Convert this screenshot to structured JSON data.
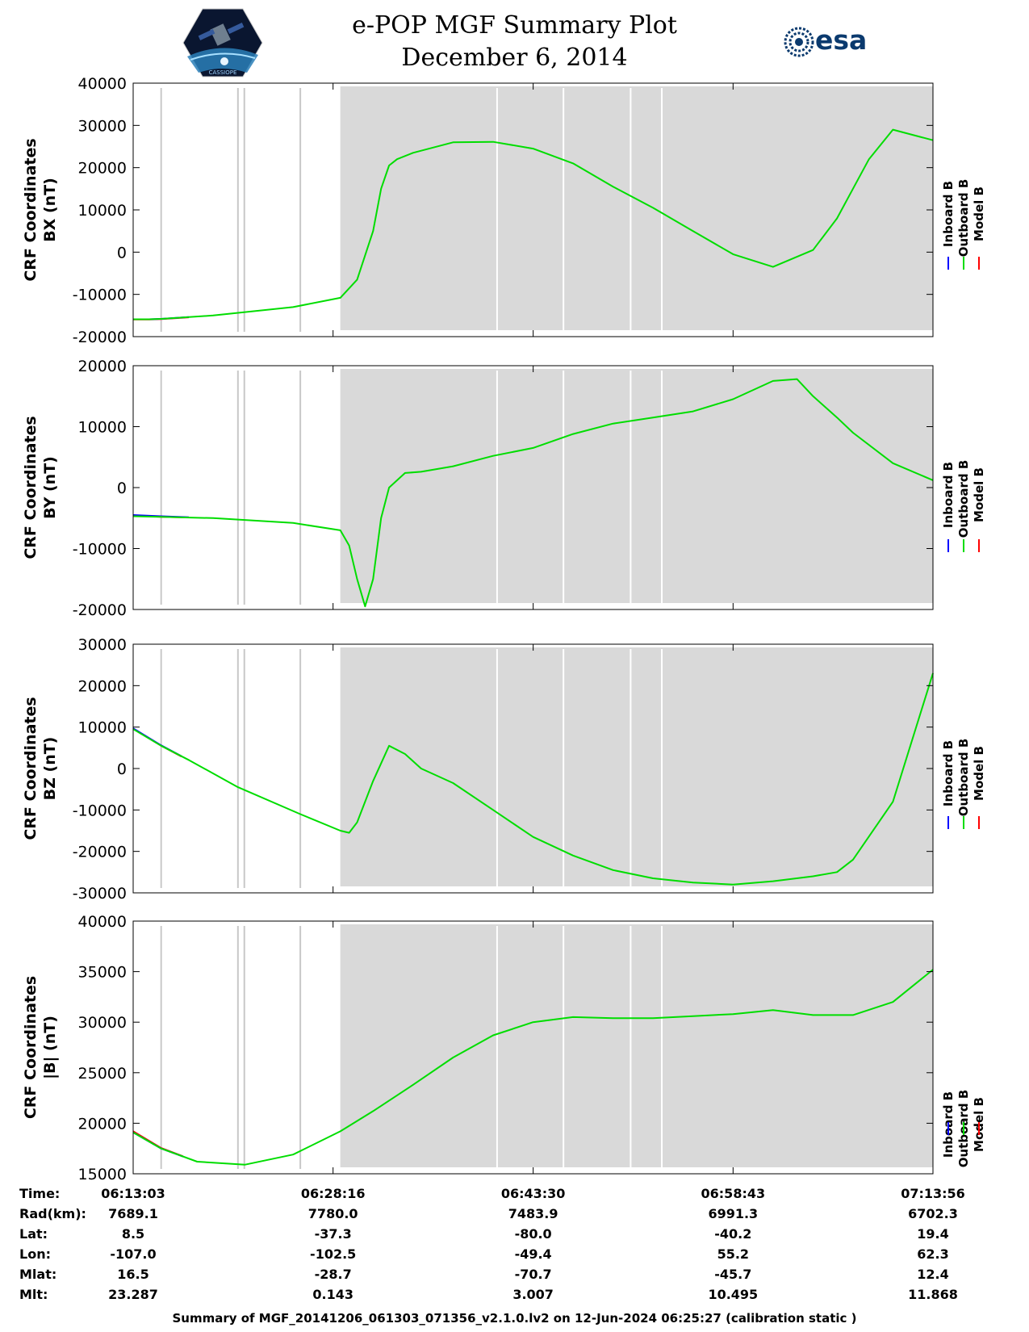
{
  "header": {
    "title": "e-POP MGF Summary Plot",
    "date": "December 6, 2014",
    "left_logo": {
      "name": "cassiope-mission-logo",
      "text": "CASSIOPE"
    },
    "right_logo": {
      "name": "esa-logo",
      "text": "esa"
    }
  },
  "colors": {
    "inboard": "#0000ff",
    "outboard": "#00dd00",
    "model": "#ff0000",
    "shade": "#d9d9d9",
    "marker": "#c8c8c8"
  },
  "legend": [
    {
      "label": "Inboard B",
      "color": "#0000ff"
    },
    {
      "label": "Outboard B",
      "color": "#00dd00"
    },
    {
      "label": "Model B",
      "color": "#ff0000"
    }
  ],
  "time_axis": {
    "start_sec": 0,
    "end_sec": 3653,
    "tick_secs": [
      0,
      913,
      1827,
      2740,
      3653
    ]
  },
  "shaded_region": [
    0.259,
    1.0
  ],
  "marker_lines": [
    0.035,
    0.131,
    0.139,
    0.209,
    0.455,
    0.538,
    0.622,
    0.661
  ],
  "chart_data": [
    {
      "type": "line",
      "ylabel": "CRF Coordinates",
      "ylabel2": "BX (nT)",
      "ylim": [
        -20000,
        40000
      ],
      "yticks": [
        "40000",
        "30000",
        "20000",
        "10000",
        "0",
        "-10000",
        "-20000"
      ],
      "x": [
        0.0,
        0.02,
        0.035,
        0.1,
        0.2,
        0.259,
        0.28,
        0.3,
        0.31,
        0.32,
        0.33,
        0.35,
        0.4,
        0.45,
        0.5,
        0.55,
        0.6,
        0.65,
        0.7,
        0.75,
        0.8,
        0.85,
        0.88,
        0.9,
        0.92,
        0.95,
        1.0
      ],
      "series": [
        {
          "name": "Outboard B",
          "values": [
            -15900,
            -15900,
            -15800,
            -15000,
            -13000,
            -10800,
            -6500,
            5000,
            15000,
            20500,
            22000,
            23500,
            26000,
            26100,
            24500,
            21000,
            15500,
            10500,
            5000,
            -500,
            -3500,
            500,
            8000,
            15000,
            22000,
            29000,
            26500
          ]
        },
        {
          "name": "Inboard B",
          "values": [
            -15900,
            -15900,
            -15800,
            -15000,
            -13000,
            -10800,
            -6500,
            5000,
            15000,
            20500,
            22000,
            23500,
            26000,
            26100,
            24500,
            21000,
            15500,
            10500,
            5000,
            -500,
            -3500,
            500,
            8000,
            15000,
            22000,
            29000,
            26500
          ]
        },
        {
          "name": "Model B",
          "values": [
            -15950,
            -15950,
            -15850,
            -15050,
            -13050,
            -10800,
            -6500,
            5000,
            15000,
            20500,
            22000,
            23500,
            26000,
            26100,
            24500,
            21000,
            15500,
            10500,
            5000,
            -500,
            -3500,
            500,
            8000,
            15000,
            22000,
            29000,
            26500
          ]
        }
      ]
    },
    {
      "type": "line",
      "ylabel": "CRF Coordinates",
      "ylabel2": "BY (nT)",
      "ylim": [
        -20000,
        20000
      ],
      "yticks": [
        "20000",
        "10000",
        "0",
        "-10000",
        "-20000"
      ],
      "x": [
        0.0,
        0.035,
        0.1,
        0.2,
        0.259,
        0.27,
        0.28,
        0.29,
        0.3,
        0.31,
        0.32,
        0.34,
        0.36,
        0.4,
        0.45,
        0.5,
        0.55,
        0.6,
        0.65,
        0.7,
        0.75,
        0.8,
        0.83,
        0.85,
        0.88,
        0.9,
        0.95,
        1.0
      ],
      "series": [
        {
          "name": "Outboard B",
          "values": [
            -4700,
            -4800,
            -5000,
            -5800,
            -7000,
            -9500,
            -15000,
            -19500,
            -15000,
            -5000,
            0,
            2400,
            2600,
            3500,
            5200,
            6500,
            8800,
            10500,
            11500,
            12500,
            14500,
            17500,
            17800,
            15000,
            11500,
            9000,
            4000,
            1200
          ]
        },
        {
          "name": "Inboard B",
          "values": [
            -4500,
            -4700,
            -5000,
            -5800,
            -7000,
            -9500,
            -15000,
            -19500,
            -15000,
            -5000,
            0,
            2400,
            2600,
            3500,
            5200,
            6500,
            8800,
            10500,
            11500,
            12500,
            14500,
            17500,
            17800,
            15000,
            11500,
            9000,
            4000,
            1200
          ]
        },
        {
          "name": "Model B",
          "values": [
            -4600,
            -4800,
            -5000,
            -5800,
            -7000,
            -9500,
            -15000,
            -19500,
            -15000,
            -5000,
            0,
            2500,
            2700,
            3600,
            5300,
            6600,
            8900,
            10600,
            11600,
            12600,
            14600,
            17600,
            17900,
            15100,
            11600,
            9100,
            4100,
            1300
          ]
        }
      ]
    },
    {
      "type": "line",
      "ylabel": "CRF Coordinates",
      "ylabel2": "BZ (nT)",
      "ylim": [
        -30000,
        30000
      ],
      "yticks": [
        "30000",
        "20000",
        "10000",
        "0",
        "-10000",
        "-20000",
        "-30000"
      ],
      "x": [
        0.0,
        0.035,
        0.07,
        0.131,
        0.209,
        0.259,
        0.27,
        0.28,
        0.3,
        0.32,
        0.34,
        0.36,
        0.4,
        0.45,
        0.5,
        0.55,
        0.6,
        0.65,
        0.7,
        0.75,
        0.8,
        0.85,
        0.88,
        0.9,
        0.95,
        1.0
      ],
      "series": [
        {
          "name": "Outboard B",
          "values": [
            9500,
            5500,
            2000,
            -4500,
            -11000,
            -15000,
            -15500,
            -13000,
            -3000,
            5500,
            3500,
            0,
            -3500,
            -10000,
            -16500,
            -21000,
            -24500,
            -26500,
            -27500,
            -28000,
            -27200,
            -26000,
            -25000,
            -22000,
            -8000,
            23000
          ]
        },
        {
          "name": "Inboard B",
          "values": [
            9700,
            5600,
            2000,
            -4500,
            -11000,
            -15000,
            -15500,
            -13000,
            -3000,
            5500,
            3500,
            0,
            -3500,
            -10000,
            -16500,
            -21000,
            -24500,
            -26500,
            -27500,
            -28000,
            -27200,
            -26000,
            -25000,
            -22000,
            -8000,
            23000
          ]
        },
        {
          "name": "Model B",
          "values": [
            9600,
            5500,
            1900,
            -4500,
            -11000,
            -15000,
            -15500,
            -13000,
            -3000,
            5500,
            3500,
            0,
            -3500,
            -10000,
            -16500,
            -21000,
            -24500,
            -26500,
            -27500,
            -28000,
            -27200,
            -26000,
            -25000,
            -22000,
            -8000,
            23000
          ]
        }
      ]
    },
    {
      "type": "line",
      "ylabel": "CRF Coordinates",
      "ylabel2": "|B| (nT)",
      "ylim": [
        15000,
        40000
      ],
      "yticks": [
        "40000",
        "35000",
        "30000",
        "25000",
        "20000",
        "15000"
      ],
      "x": [
        0.0,
        0.035,
        0.08,
        0.14,
        0.2,
        0.259,
        0.3,
        0.35,
        0.4,
        0.45,
        0.5,
        0.55,
        0.6,
        0.65,
        0.7,
        0.75,
        0.8,
        0.85,
        0.9,
        0.95,
        1.0
      ],
      "series": [
        {
          "name": "Outboard B",
          "values": [
            19100,
            17500,
            16200,
            15900,
            16900,
            19200,
            21200,
            23800,
            26500,
            28700,
            30000,
            30500,
            30400,
            30400,
            30600,
            30800,
            31200,
            30700,
            30700,
            32000,
            35200
          ]
        },
        {
          "name": "Inboard B",
          "values": [
            19100,
            17500,
            16200,
            15900,
            16900,
            19200,
            21200,
            23800,
            26500,
            28700,
            30000,
            30500,
            30400,
            30400,
            30600,
            30800,
            31200,
            30700,
            30700,
            32000,
            35200
          ]
        },
        {
          "name": "Model B",
          "values": [
            19200,
            17550,
            16200,
            15900,
            16900,
            19200,
            21200,
            23800,
            26500,
            28700,
            30000,
            30500,
            30400,
            30400,
            30600,
            30800,
            31200,
            30700,
            30700,
            32000,
            35200
          ]
        }
      ]
    }
  ],
  "ephemeris": {
    "labels": [
      "Time:",
      "Rad(km):",
      "Lat:",
      "Lon:",
      "Mlat:",
      "Mlt:"
    ],
    "columns": [
      [
        "06:13:03",
        "7689.1",
        "8.5",
        "-107.0",
        "16.5",
        "23.287"
      ],
      [
        "06:28:16",
        "7780.0",
        "-37.3",
        "-102.5",
        "-28.7",
        "0.143"
      ],
      [
        "06:43:30",
        "7483.9",
        "-80.0",
        "-49.4",
        "-70.7",
        "3.007"
      ],
      [
        "06:58:43",
        "6991.3",
        "-40.2",
        "55.2",
        "-45.7",
        "10.495"
      ],
      [
        "07:13:56",
        "6702.3",
        "19.4",
        "62.3",
        "12.4",
        "11.868"
      ]
    ]
  },
  "footer": "Summary of MGF_20141206_061303_071356_v2.1.0.lv2 on 12-Jun-2024 06:25:27 (calibration static )"
}
